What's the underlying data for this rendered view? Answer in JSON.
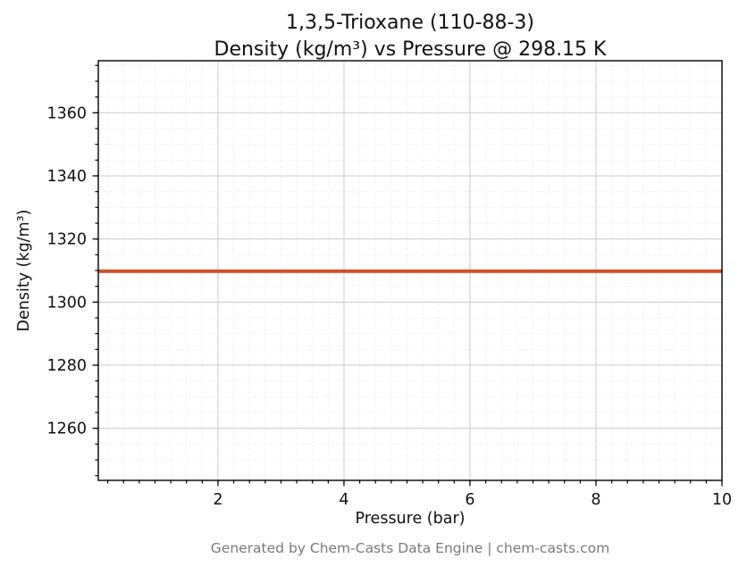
{
  "chart_data": {
    "type": "line",
    "title_line1": "1,3,5-Trioxane (110-88-3)",
    "title_line2": "Density (kg/m³) vs Pressure @ 298.15 K",
    "xlabel": "Pressure (bar)",
    "ylabel": "Density (kg/m³)",
    "xlim": [
      0.1,
      10
    ],
    "ylim": [
      1243.5,
      1376.5
    ],
    "x_ticks": [
      2,
      4,
      6,
      8,
      10
    ],
    "y_ticks": [
      1260,
      1280,
      1300,
      1320,
      1340,
      1360
    ],
    "x_minor_step": 0.25,
    "y_minor_step": 5,
    "grid": true,
    "series": [
      {
        "name": "Density",
        "x": [
          0.1,
          10
        ],
        "y": [
          1309.8,
          1309.8
        ],
        "color": "#d1502b"
      }
    ]
  },
  "footer": {
    "text": "Generated by Chem-Casts Data Engine | chem-casts.com"
  }
}
